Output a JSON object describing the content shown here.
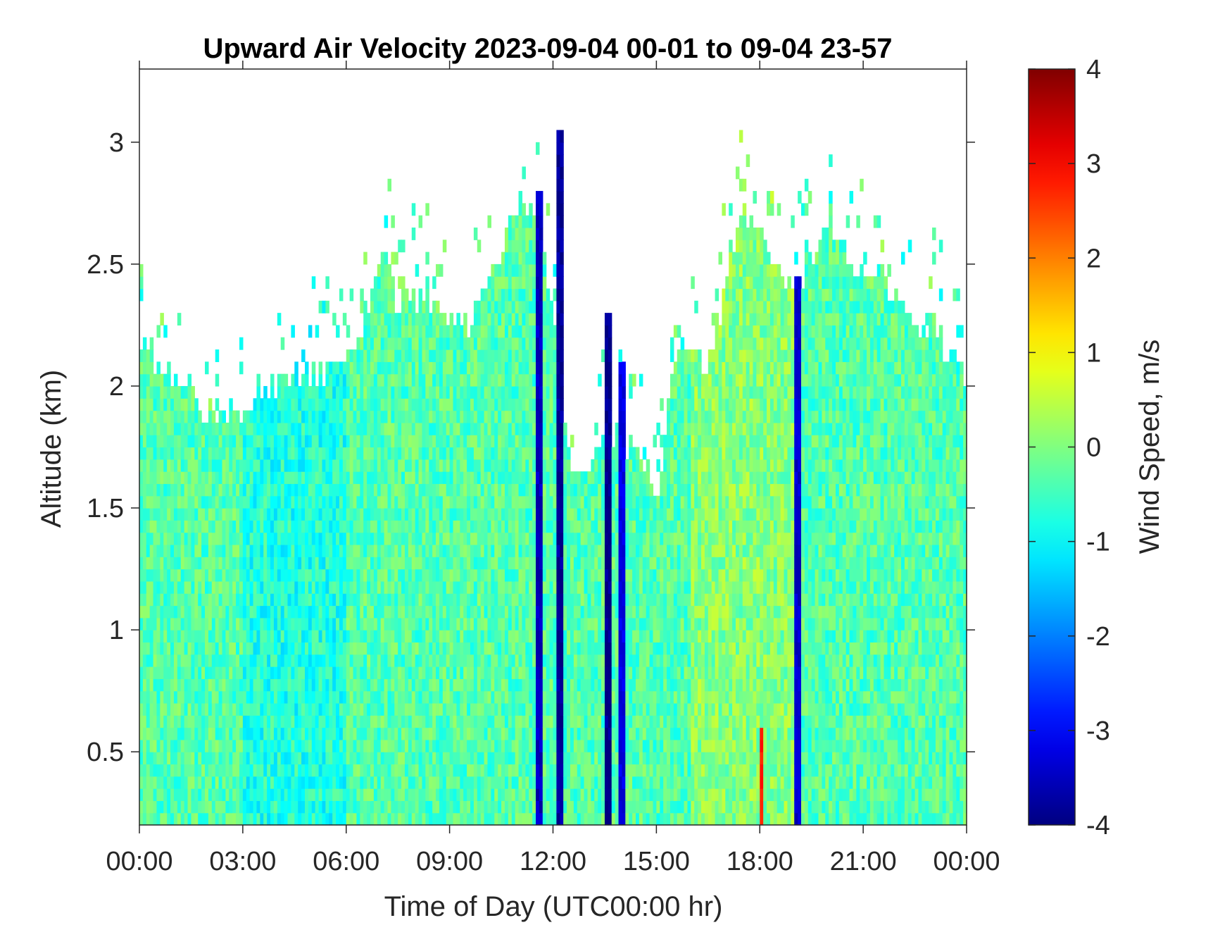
{
  "chart_data": {
    "type": "heatmap",
    "title": "Upward Air Velocity 2023-09-04 00-01 to 09-04 23-57",
    "xlabel": "Time of Day (UTC00:00 hr)",
    "ylabel": "Altitude (km)",
    "colorbar_label": "Wind Speed, m/s",
    "colormap": "jet",
    "x_unit": "hours UTC",
    "xlim": [
      0,
      24
    ],
    "ylim": [
      0.2,
      3.3
    ],
    "clim": [
      -4,
      4
    ],
    "x_ticks": [
      0,
      3,
      6,
      9,
      12,
      15,
      18,
      21,
      24
    ],
    "x_tick_labels": [
      "00:00",
      "03:00",
      "06:00",
      "09:00",
      "12:00",
      "15:00",
      "18:00",
      "21:00",
      "00:00"
    ],
    "y_ticks": [
      0.5,
      1,
      1.5,
      2,
      2.5,
      3
    ],
    "y_tick_labels": [
      "0.5",
      "1",
      "1.5",
      "2",
      "2.5",
      "3"
    ],
    "colorbar_ticks": [
      -4,
      -3,
      -2,
      -1,
      0,
      1,
      2,
      3,
      4
    ],
    "colorbar_tick_labels": [
      "-4",
      "-3",
      "-2",
      "-1",
      "0",
      "1",
      "2",
      "3",
      "4"
    ],
    "data_top_profile": {
      "time_hr": [
        0,
        0.5,
        1,
        1.5,
        2,
        2.5,
        3,
        3.5,
        4,
        4.5,
        5,
        5.5,
        6,
        6.5,
        7,
        7.5,
        8,
        8.5,
        9,
        9.5,
        10,
        10.5,
        11,
        11.5,
        12,
        12.5,
        13,
        13.5,
        14,
        14.5,
        15,
        15.5,
        16,
        16.5,
        17,
        17.5,
        18,
        18.5,
        19,
        19.5,
        20,
        20.5,
        21,
        21.5,
        22,
        22.5,
        23,
        23.5,
        24
      ],
      "top_km": [
        2.2,
        2.1,
        2.05,
        1.95,
        1.85,
        1.9,
        1.9,
        2.0,
        2.0,
        2.05,
        2.05,
        2.05,
        2.1,
        2.2,
        2.6,
        2.35,
        2.35,
        2.35,
        2.3,
        2.25,
        2.35,
        2.55,
        2.75,
        2.7,
        2.3,
        1.65,
        1.6,
        1.8,
        1.75,
        1.7,
        1.55,
        2.1,
        2.2,
        2.05,
        2.45,
        2.7,
        2.6,
        2.5,
        2.4,
        2.55,
        2.7,
        2.5,
        2.45,
        2.45,
        2.35,
        2.25,
        2.25,
        2.1,
        2.0
      ]
    },
    "notable_features": [
      {
        "time_hr": 11.6,
        "alt_km": [
          0.2,
          2.8
        ],
        "value_ms": -3.5
      },
      {
        "time_hr": 12.2,
        "alt_km": [
          0.2,
          3.05
        ],
        "value_ms": -3.8
      },
      {
        "time_hr": 13.6,
        "alt_km": [
          0.2,
          2.3
        ],
        "value_ms": -3.9
      },
      {
        "time_hr": 14.0,
        "alt_km": [
          0.2,
          2.1
        ],
        "value_ms": -3.2
      },
      {
        "time_hr": 18.05,
        "alt_km": [
          0.2,
          0.6
        ],
        "value_ms": 2.8
      },
      {
        "time_hr": 19.1,
        "alt_km": [
          0.2,
          2.45
        ],
        "value_ms": -3.4
      }
    ]
  }
}
